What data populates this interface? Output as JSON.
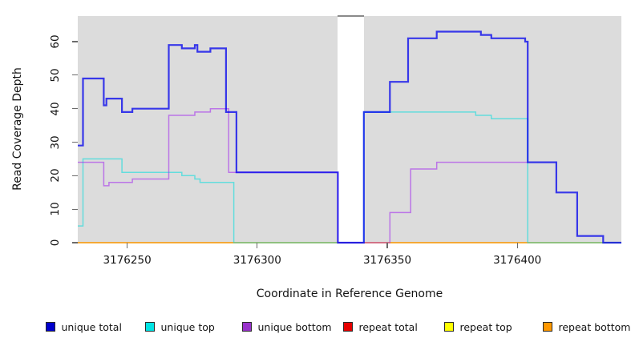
{
  "chart_data": {
    "type": "line",
    "subtype": "step-coverage",
    "title": "",
    "xlabel": "Coordinate in Reference Genome",
    "ylabel": "Read Coverage Depth",
    "xlim": [
      3176231,
      3176440
    ],
    "ylim": [
      0,
      67.65
    ],
    "x_ticks": [
      3176250,
      3176300,
      3176350,
      3176400
    ],
    "y_ticks": [
      0,
      10,
      20,
      30,
      40,
      50,
      60
    ],
    "plot_bg": "#dcdcdc",
    "gap": {
      "start": 3176331,
      "end": 3176341
    },
    "series": [
      {
        "name": "repeat total",
        "color": "#dd0000",
        "opacity": 0.55,
        "width": 1.5,
        "steps": [
          [
            3176231,
            0
          ]
        ]
      },
      {
        "name": "repeat top",
        "color": "#ffff00",
        "opacity": 0.55,
        "width": 1.5,
        "steps": [
          [
            3176231,
            0
          ]
        ]
      },
      {
        "name": "repeat bottom",
        "color": "#ff8c00",
        "opacity": 0.55,
        "width": 1.5,
        "steps": [
          [
            3176231,
            0
          ]
        ]
      },
      {
        "name": "unique top",
        "color": "#00dede",
        "opacity": 0.55,
        "width": 1.5,
        "steps": [
          [
            3176231,
            5
          ],
          [
            3176233,
            25
          ],
          [
            3176248,
            21
          ],
          [
            3176271,
            20
          ],
          [
            3176276,
            19
          ],
          [
            3176278,
            18
          ],
          [
            3176291,
            0
          ],
          [
            3176341,
            39
          ],
          [
            3176384,
            38
          ],
          [
            3176390,
            37
          ],
          [
            3176404,
            0
          ]
        ]
      },
      {
        "name": "unique bottom",
        "color": "#a020f0",
        "opacity": 0.55,
        "width": 1.5,
        "end": 3176404,
        "steps": [
          [
            3176231,
            24
          ],
          [
            3176241,
            17
          ],
          [
            3176243,
            18
          ],
          [
            3176252,
            19
          ],
          [
            3176266,
            38
          ],
          [
            3176276,
            39
          ],
          [
            3176282,
            40
          ],
          [
            3176289,
            21
          ],
          [
            3176331,
            0
          ],
          [
            3176351,
            9
          ],
          [
            3176359,
            22
          ],
          [
            3176369,
            24
          ]
        ]
      },
      {
        "name": "unique total",
        "color": "#0000ee",
        "opacity": 0.75,
        "width": 2.2,
        "steps": [
          [
            3176231,
            29
          ],
          [
            3176233,
            49
          ],
          [
            3176241,
            41
          ],
          [
            3176242,
            43
          ],
          [
            3176248,
            39
          ],
          [
            3176252,
            40
          ],
          [
            3176266,
            59
          ],
          [
            3176271,
            58
          ],
          [
            3176276,
            59
          ],
          [
            3176277,
            57
          ],
          [
            3176282,
            58
          ],
          [
            3176288,
            39
          ],
          [
            3176292,
            21
          ],
          [
            3176331,
            0
          ],
          [
            3176341,
            39
          ],
          [
            3176351,
            48
          ],
          [
            3176358,
            61
          ],
          [
            3176369,
            63
          ],
          [
            3176386,
            62
          ],
          [
            3176390,
            61
          ],
          [
            3176403,
            60
          ],
          [
            3176404,
            24
          ],
          [
            3176415,
            15
          ],
          [
            3176423,
            2
          ],
          [
            3176433,
            0
          ]
        ]
      }
    ],
    "legend": [
      {
        "label": "unique total",
        "color": "#0000cd"
      },
      {
        "label": "unique top",
        "color": "#00e5e5"
      },
      {
        "label": "unique bottom",
        "color": "#9932cc"
      },
      {
        "label": "repeat total",
        "color": "#e60000"
      },
      {
        "label": "repeat top",
        "color": "#ffff00"
      },
      {
        "label": "repeat bottom",
        "color": "#ff9800"
      }
    ]
  }
}
